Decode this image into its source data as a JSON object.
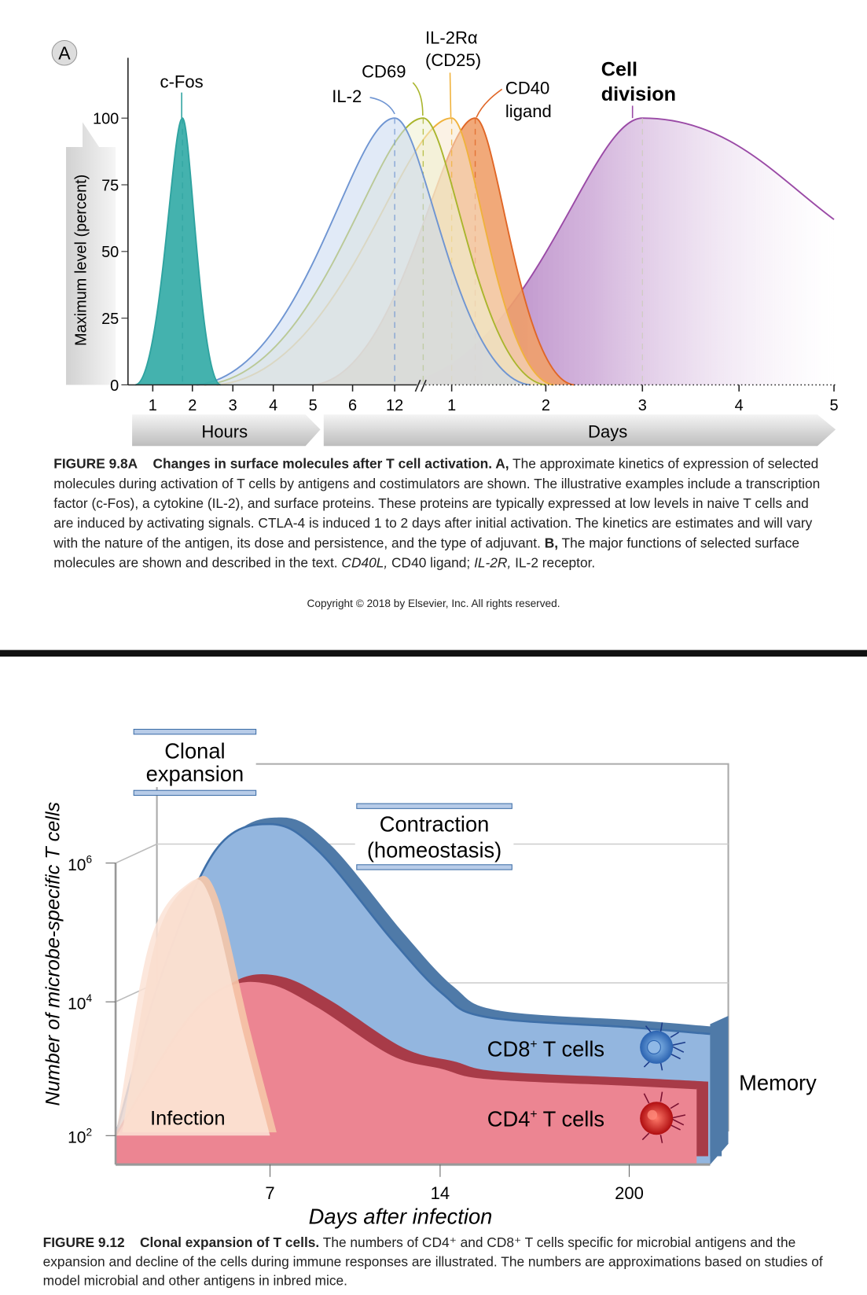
{
  "figure_a": {
    "panel_label": "A",
    "caption_label": "FIGURE 9.8A",
    "caption_title": "Changes in surface molecules after T cell activation. A,",
    "caption_body_1": "The approximate kinetics of expression of selected molecules during activation of T cells by antigens and costimulators are shown. The illustrative examples include a transcription factor (c-Fos), a cytokine (IL-2), and surface proteins. These proteins are typically expressed at low levels in naive T cells and are induced by activating signals. CTLA-4 is induced 1 to 2 days after initial activation. The kinetics are estimates and will vary with the nature of the antigen, its dose and persistence, and the type of adjuvant.",
    "caption_b_label": "B,",
    "caption_body_2": "The major functions of selected surface molecules are shown and described in the text.",
    "caption_abbr_1": "CD40L,",
    "caption_abbr_1_def": "CD40 ligand;",
    "caption_abbr_2": "IL-2R,",
    "caption_abbr_2_def": "IL-2 receptor.",
    "copyright": "Copyright © 2018 by Elsevier, Inc. All rights reserved."
  },
  "figure_b": {
    "caption_label": "FIGURE 9.12",
    "caption_title": "Clonal expansion of T cells.",
    "caption_body": "The numbers of CD4⁺ and CD8⁺ T cells specific for microbial antigens and the expansion and decline of the cells during immune responses are illustrated. The numbers are approximations based on studies of model microbial and other antigens in inbred mice."
  },
  "chart_data": [
    {
      "type": "area",
      "ylabel": "Maximum level (percent)",
      "ylim": [
        0,
        100
      ],
      "yticks": [
        "0",
        "25",
        "50",
        "75",
        "100"
      ],
      "x_unit": "hours",
      "x_ticks": [
        {
          "label": "1",
          "hours": 1
        },
        {
          "label": "2",
          "hours": 2
        },
        {
          "label": "3",
          "hours": 3
        },
        {
          "label": "4",
          "hours": 4
        },
        {
          "label": "5",
          "hours": 5
        },
        {
          "label": "6",
          "hours": 6
        },
        {
          "label": "12",
          "hours": 12
        },
        {
          "label": "1",
          "hours": 24
        },
        {
          "label": "2",
          "hours": 48
        },
        {
          "label": "3",
          "hours": 72
        },
        {
          "label": "4",
          "hours": 96
        },
        {
          "label": "5",
          "hours": 120
        }
      ],
      "x_group_labels": {
        "hours": "Hours",
        "days": "Days"
      },
      "axis_break": true,
      "series": [
        {
          "name": "c-Fos",
          "start": 0.3,
          "peak": 1.75,
          "end": 2.7,
          "peak_level": 100,
          "end_level": 0,
          "color": "#2fa3a0",
          "fill": "#3aaeaa"
        },
        {
          "name": "IL-2",
          "start": 2.1,
          "peak": 12,
          "end": 44,
          "peak_level": 100,
          "end_level": 0,
          "color": "#6f95d2",
          "fill": "#c9d9f0"
        },
        {
          "name": "CD69",
          "start": 2.3,
          "peak": 18,
          "end": 48,
          "peak_level": 100,
          "end_level": 0,
          "color": "#a9b52c",
          "fill": "#eef0cf"
        },
        {
          "name": "IL-2Rα (CD25)",
          "start": 2.6,
          "peak": 24,
          "end": 50,
          "peak_level": 100,
          "end_level": 0,
          "color": "#f0b23c",
          "fill": "#f8e8cf"
        },
        {
          "name": "CD40 ligand",
          "start": 5,
          "peak": 30,
          "end": 55,
          "peak_level": 100,
          "end_level": 0,
          "color": "#e06626",
          "fill": "#f0a06a"
        },
        {
          "name": "Cell division",
          "start": 12,
          "peak": 72,
          "end": 120,
          "peak_level": 100,
          "end_level": 62,
          "color": "#9a4aa6",
          "fill": "#a56bb4"
        }
      ]
    },
    {
      "type": "area",
      "ylabel": "Number of microbe-specific T cells",
      "xlabel": "Days after infection",
      "y_scale": "log",
      "yticks": [
        {
          "label": "10",
          "exp": "2",
          "log": 2
        },
        {
          "label": "10",
          "exp": "4",
          "log": 4
        },
        {
          "label": "10",
          "exp": "6",
          "log": 6
        }
      ],
      "xticks": [
        "7",
        "14",
        "200"
      ],
      "phases": [
        "Clonal expansion",
        "Contraction (homeostasis)"
      ],
      "phase_lines": {
        "clonal": [
          "Clonal",
          "expansion"
        ],
        "contraction": [
          "Contraction",
          "(homeostasis)"
        ]
      },
      "memory_label": "Memory",
      "series": [
        {
          "name": "Infection",
          "color": "#f6c7a8",
          "fill": "#fbe3d6",
          "points": [
            [
              0,
              2
            ],
            [
              1.5,
              4.8
            ],
            [
              3.2,
              5.7
            ],
            [
              4.3,
              5.5
            ],
            [
              5.8,
              3.5
            ],
            [
              7,
              2
            ]
          ]
        },
        {
          "name": "CD8⁺ T cells",
          "label": "CD8",
          "sup": "+",
          "suffix": " T cells",
          "color": "#3e6fa8",
          "fill": "#93b6df",
          "points": [
            [
              0,
              2
            ],
            [
              2,
              4.3
            ],
            [
              4.5,
              6.2
            ],
            [
              7,
              6.6
            ],
            [
              9,
              6.2
            ],
            [
              12,
              4.9
            ],
            [
              16,
              4.1
            ],
            [
              60,
              3.75
            ],
            [
              200,
              3.6
            ],
            [
              260,
              3.5
            ]
          ]
        },
        {
          "name": "CD4⁺ T cells",
          "label": "CD4",
          "sup": "+",
          "suffix": " T cells",
          "color": "#a83b48",
          "fill": "#ec8592",
          "points": [
            [
              0,
              2
            ],
            [
              3,
              3.6
            ],
            [
              5,
              4.2
            ],
            [
              7,
              4.25
            ],
            [
              9,
              3.9
            ],
            [
              12,
              3.2
            ],
            [
              16,
              3.0
            ],
            [
              60,
              2.85
            ],
            [
              200,
              2.75
            ],
            [
              250,
              2.7
            ]
          ]
        }
      ]
    }
  ]
}
